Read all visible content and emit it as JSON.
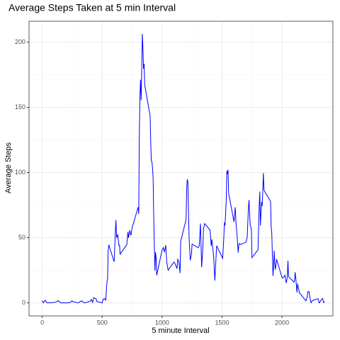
{
  "chart_data": {
    "type": "line",
    "title": "Average Steps Taken at 5 min Interval",
    "x_label": "5 minute Interval",
    "y_label": "Average Steps",
    "x": [
      0,
      10,
      25,
      40,
      55,
      100,
      125,
      130,
      155,
      200,
      230,
      250,
      255,
      300,
      330,
      345,
      355,
      400,
      410,
      420,
      430,
      440,
      450,
      455,
      500,
      510,
      520,
      530,
      540,
      545,
      550,
      555,
      600,
      610,
      615,
      620,
      630,
      640,
      645,
      650,
      700,
      705,
      715,
      720,
      730,
      740,
      750,
      800,
      805,
      810,
      815,
      820,
      825,
      830,
      835,
      840,
      845,
      850,
      855,
      900,
      905,
      910,
      915,
      920,
      925,
      930,
      935,
      940,
      945,
      950,
      955,
      1000,
      1010,
      1020,
      1030,
      1040,
      1045,
      1050,
      1100,
      1110,
      1125,
      1130,
      1140,
      1150,
      1155,
      1200,
      1205,
      1210,
      1215,
      1225,
      1235,
      1245,
      1250,
      1300,
      1310,
      1320,
      1330,
      1340,
      1345,
      1355,
      1400,
      1410,
      1415,
      1430,
      1440,
      1445,
      1455,
      1505,
      1510,
      1515,
      1520,
      1525,
      1535,
      1540,
      1545,
      1550,
      1555,
      1600,
      1610,
      1615,
      1625,
      1635,
      1640,
      1645,
      1655,
      1700,
      1710,
      1720,
      1725,
      1730,
      1735,
      1745,
      1750,
      1800,
      1805,
      1810,
      1815,
      1820,
      1830,
      1835,
      1845,
      1850,
      1855,
      1905,
      1910,
      1915,
      1920,
      1925,
      1930,
      1935,
      1940,
      1945,
      1955,
      2000,
      2005,
      2010,
      2025,
      2035,
      2040,
      2045,
      2050,
      2055,
      2100,
      2105,
      2110,
      2115,
      2125,
      2130,
      2145,
      2200,
      2210,
      2215,
      2225,
      2240,
      2245,
      2250,
      2300,
      2310,
      2320,
      2330,
      2340,
      2345,
      2350,
      2355
    ],
    "series": [
      {
        "color": "#0000ff",
        "values": [
          1.7,
          0.1,
          2.1,
          0,
          0.1,
          0.3,
          1.1,
          1.8,
          0,
          0,
          0.2,
          1.5,
          0.9,
          0,
          1.6,
          0.1,
          0,
          1.2,
          2.6,
          0.3,
          4.1,
          3.5,
          3.1,
          1.1,
          0,
          3.0,
          3.3,
          2.1,
          16,
          18.3,
          39.5,
          44.5,
          31.5,
          53.8,
          63.5,
          50,
          52.2,
          44.1,
          44.2,
          37.4,
          44,
          44.4,
          54.5,
          49.9,
          55.7,
          51.8,
          57.6,
          73.4,
          68.2,
          129.4,
          157.5,
          171.2,
          155.4,
          177.3,
          206.2,
          195.9,
          179.6,
          183.4,
          167,
          143.5,
          124,
          109.1,
          108.1,
          103.7,
          96,
          66.2,
          45.2,
          24.8,
          38.8,
          35,
          21.1,
          40.6,
          42.4,
          38.9,
          44.3,
          30.2,
          28.3,
          25.1,
          31.4,
          29.7,
          26.2,
          33.4,
          31.7,
          22.8,
          47.2,
          63.9,
          87.7,
          94.8,
          92.8,
          50.2,
          32.6,
          37.7,
          45.1,
          42.3,
          43.7,
          60.8,
          27.3,
          42.4,
          56.4,
          60.8,
          55.8,
          43.6,
          48.7,
          35.5,
          17.1,
          26.1,
          43.8,
          34.2,
          41.6,
          50.4,
          61.7,
          59.3,
          78.4,
          101.2,
          98.7,
          102.1,
          84,
          62.1,
          73.4,
          63.4,
          52,
          38.5,
          44.6,
          45.5,
          44.7,
          46.6,
          50.5,
          72.7,
          78.9,
          68.9,
          59.7,
          56.5,
          34.8,
          40.7,
          58,
          74.7,
          85.3,
          59.3,
          77.4,
          74.2,
          99.5,
          86.6,
          85.6,
          77.8,
          58,
          53.4,
          36.3,
          20.7,
          27.4,
          40,
          30.2,
          25.5,
          33.5,
          19.6,
          19,
          19.3,
          21.2,
          15.3,
          17.1,
          21.2,
          32.3,
          20.2,
          15.9,
          17.2,
          23.5,
          19.2,
          8,
          14.7,
          7.8,
          1.6,
          4.6,
          8.5,
          8.7,
          0.5,
          0.1,
          1.6,
          3.3,
          0,
          1,
          2.6,
          3.3,
          0.6,
          0.2,
          1.1
        ]
      }
    ],
    "xlim": [
      -110,
      2425
    ],
    "xticks": [
      0,
      500,
      1000,
      1500,
      2000
    ],
    "ylim": [
      -10,
      216
    ],
    "yticks": [
      0,
      50,
      100,
      150,
      200
    ],
    "grid": true
  }
}
